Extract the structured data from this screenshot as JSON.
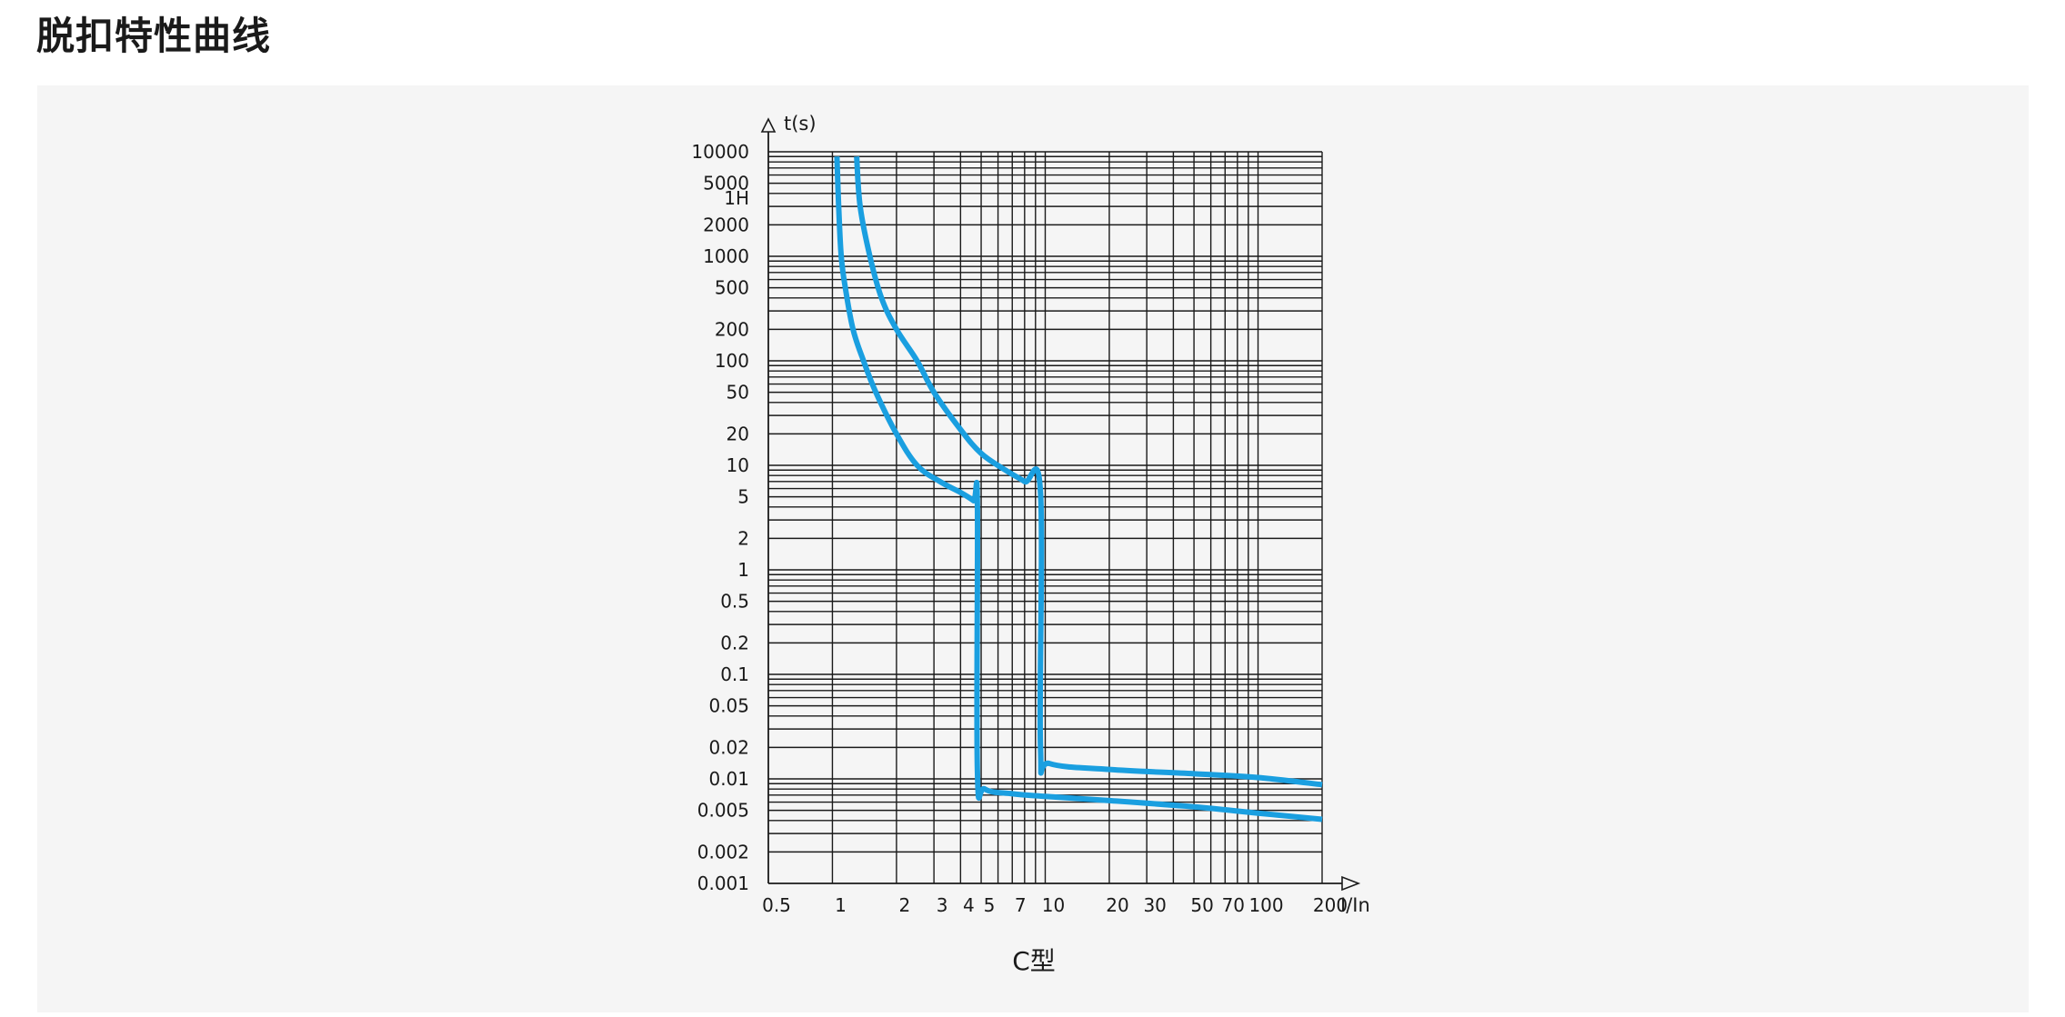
{
  "header": {
    "title": "脱扣特性曲线"
  },
  "chart_data": {
    "type": "line",
    "title": "",
    "caption": "C型",
    "xlabel": "I/In",
    "ylabel": "t(s)",
    "x_scale": "log",
    "y_scale": "log",
    "xlim": [
      0.5,
      200
    ],
    "ylim": [
      0.001,
      10000
    ],
    "grid": true,
    "x_tick_labels": [
      {
        "value": 0.5,
        "label": "0.5"
      },
      {
        "value": 1,
        "label": "1"
      },
      {
        "value": 2,
        "label": "2"
      },
      {
        "value": 3,
        "label": "3"
      },
      {
        "value": 4,
        "label": "4"
      },
      {
        "value": 5,
        "label": "5"
      },
      {
        "value": 7,
        "label": "7"
      },
      {
        "value": 10,
        "label": "10"
      },
      {
        "value": 20,
        "label": "20"
      },
      {
        "value": 30,
        "label": "30"
      },
      {
        "value": 50,
        "label": "50"
      },
      {
        "value": 70,
        "label": "70"
      },
      {
        "value": 100,
        "label": "100"
      },
      {
        "value": 200,
        "label": "200"
      }
    ],
    "x_gridlines": [
      1,
      2,
      3,
      4,
      5,
      6,
      7,
      8,
      9,
      10,
      20,
      30,
      40,
      50,
      60,
      70,
      80,
      90,
      100,
      200
    ],
    "y_tick_labels": [
      {
        "value": 10000,
        "label": "10000"
      },
      {
        "value": 5000,
        "label": "5000"
      },
      {
        "value": 3600,
        "label": "1H"
      },
      {
        "value": 2000,
        "label": "2000"
      },
      {
        "value": 1000,
        "label": "1000"
      },
      {
        "value": 500,
        "label": "500"
      },
      {
        "value": 200,
        "label": "200"
      },
      {
        "value": 100,
        "label": "100"
      },
      {
        "value": 50,
        "label": "50"
      },
      {
        "value": 20,
        "label": "20"
      },
      {
        "value": 10,
        "label": "10"
      },
      {
        "value": 5,
        "label": "5"
      },
      {
        "value": 2,
        "label": "2"
      },
      {
        "value": 1,
        "label": "1"
      },
      {
        "value": 0.5,
        "label": "0.5"
      },
      {
        "value": 0.2,
        "label": "0.2"
      },
      {
        "value": 0.1,
        "label": "0.1"
      },
      {
        "value": 0.05,
        "label": "0.05"
      },
      {
        "value": 0.02,
        "label": "0.02"
      },
      {
        "value": 0.01,
        "label": "0.01"
      },
      {
        "value": 0.005,
        "label": "0.005"
      },
      {
        "value": 0.002,
        "label": "0.002"
      },
      {
        "value": 0.001,
        "label": "0.001"
      }
    ],
    "y_gridlines": [
      10000,
      9000,
      8000,
      7000,
      6000,
      5000,
      4000,
      3000,
      2000,
      1000,
      900,
      800,
      700,
      600,
      500,
      400,
      300,
      200,
      100,
      90,
      80,
      70,
      60,
      50,
      40,
      30,
      20,
      10,
      9,
      8,
      7,
      6,
      5,
      4,
      3,
      2,
      1,
      0.9,
      0.8,
      0.7,
      0.6,
      0.5,
      0.4,
      0.3,
      0.2,
      0.1,
      0.09,
      0.08,
      0.07,
      0.06,
      0.05,
      0.04,
      0.03,
      0.02,
      0.01,
      0.009,
      0.008,
      0.007,
      0.006,
      0.005,
      0.004,
      0.003,
      0.002
    ],
    "series": [
      {
        "color": "#1a9fe0",
        "points": [
          [
            1.05,
            9000
          ],
          [
            1.07,
            3000
          ],
          [
            1.1,
            1000
          ],
          [
            1.15,
            500
          ],
          [
            1.25,
            200
          ],
          [
            1.4,
            100
          ],
          [
            1.6,
            50
          ],
          [
            2.0,
            20
          ],
          [
            2.5,
            10
          ],
          [
            3.2,
            7
          ],
          [
            4.0,
            5.5
          ],
          [
            4.6,
            4.6
          ],
          [
            4.8,
            4.2
          ],
          [
            4.8,
            0.012
          ],
          [
            5.2,
            0.008
          ],
          [
            7,
            0.0072
          ],
          [
            10,
            0.0068
          ],
          [
            20,
            0.0062
          ],
          [
            50,
            0.0054
          ],
          [
            100,
            0.0047
          ],
          [
            200,
            0.0041
          ]
        ]
      },
      {
        "color": "#1a9fe0",
        "points": [
          [
            1.3,
            9000
          ],
          [
            1.35,
            3000
          ],
          [
            1.5,
            1000
          ],
          [
            1.7,
            400
          ],
          [
            2.0,
            200
          ],
          [
            2.5,
            100
          ],
          [
            3.0,
            50
          ],
          [
            4.0,
            22
          ],
          [
            5.0,
            13
          ],
          [
            6.5,
            9
          ],
          [
            8.0,
            7
          ],
          [
            9.5,
            5.5
          ],
          [
            9.5,
            0.02
          ],
          [
            10.5,
            0.014
          ],
          [
            20,
            0.0123
          ],
          [
            50,
            0.0112
          ],
          [
            100,
            0.0103
          ],
          [
            200,
            0.0088
          ]
        ]
      }
    ]
  }
}
